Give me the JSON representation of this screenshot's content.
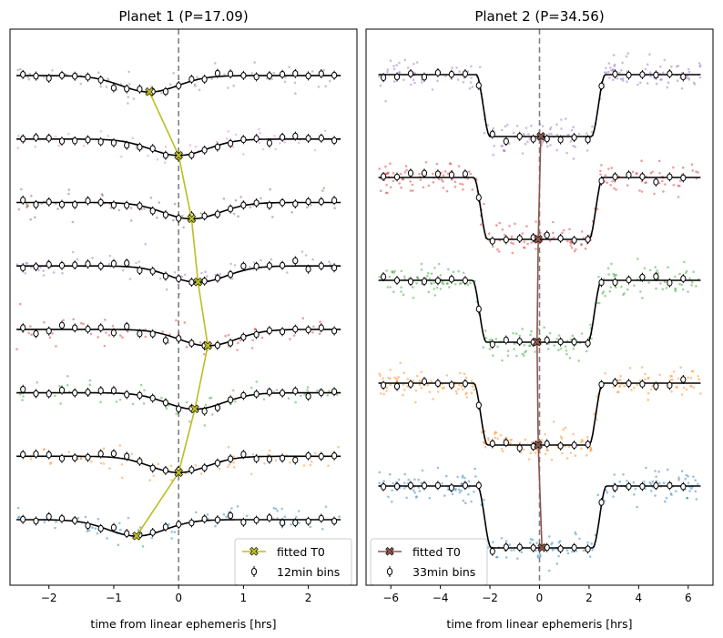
{
  "chart_data": [
    {
      "type": "scatter",
      "title": "Planet 1 (P=17.09)",
      "xlabel": "time from linear ephemeris [hrs]",
      "ylabel": "",
      "xlim": [
        -2.6,
        2.75
      ],
      "xticks": [
        -2,
        -1,
        0,
        1,
        2
      ],
      "xtick_labels": [
        "−2",
        "−1",
        "0",
        "1",
        "2"
      ],
      "grid": false,
      "legend_position": "lower-right",
      "duration_hrs": 1.05,
      "ingress_hrs": 0.35,
      "bin_label": "12min bins",
      "t0_label": "fitted T0",
      "t0_color": "#bcbd22",
      "data_range": [
        -2.5,
        2.5
      ],
      "bin_range": [
        -2.4,
        2.4
      ],
      "bin_step": 0.2,
      "transits": [
        {
          "fitted_t0": -0.65,
          "color": "#1f77b4"
        },
        {
          "fitted_t0": 0.0,
          "color": "#ff7f0e"
        },
        {
          "fitted_t0": 0.25,
          "color": "#2ca02c"
        },
        {
          "fitted_t0": 0.45,
          "color": "#d62728"
        },
        {
          "fitted_t0": 0.3,
          "color": "#9467bd"
        },
        {
          "fitted_t0": 0.2,
          "color": "#8c564b"
        },
        {
          "fitted_t0": 0.0,
          "color": "#e377c2"
        },
        {
          "fitted_t0": -0.45,
          "color": "#7f7f7f"
        }
      ]
    },
    {
      "type": "scatter",
      "title": "Planet 2 (P=34.56)",
      "xlabel": "time from linear ephemeris [hrs]",
      "ylabel": "",
      "xlim": [
        -7.0,
        7.0
      ],
      "xticks": [
        -6,
        -4,
        -2,
        0,
        2,
        4,
        6
      ],
      "xtick_labels": [
        "−6",
        "−4",
        "−2",
        "0",
        "2",
        "4",
        "6"
      ],
      "grid": false,
      "legend_position": "lower-left",
      "duration_hrs": 5.2,
      "ingress_hrs": 0.55,
      "bin_label": "33min bins",
      "t0_label": "fitted T0",
      "t0_color": "#8c564b",
      "data_range": [
        -6.5,
        6.5
      ],
      "bin_range": [
        -6.3,
        6.3
      ],
      "bin_step": 0.55,
      "transits": [
        {
          "fitted_t0": 0.1,
          "color": "#1f77b4"
        },
        {
          "fitted_t0": -0.05,
          "color": "#ff7f0e"
        },
        {
          "fitted_t0": -0.1,
          "color": "#2ca02c"
        },
        {
          "fitted_t0": -0.05,
          "color": "#d62728"
        },
        {
          "fitted_t0": 0.05,
          "color": "#9467bd"
        }
      ]
    }
  ]
}
